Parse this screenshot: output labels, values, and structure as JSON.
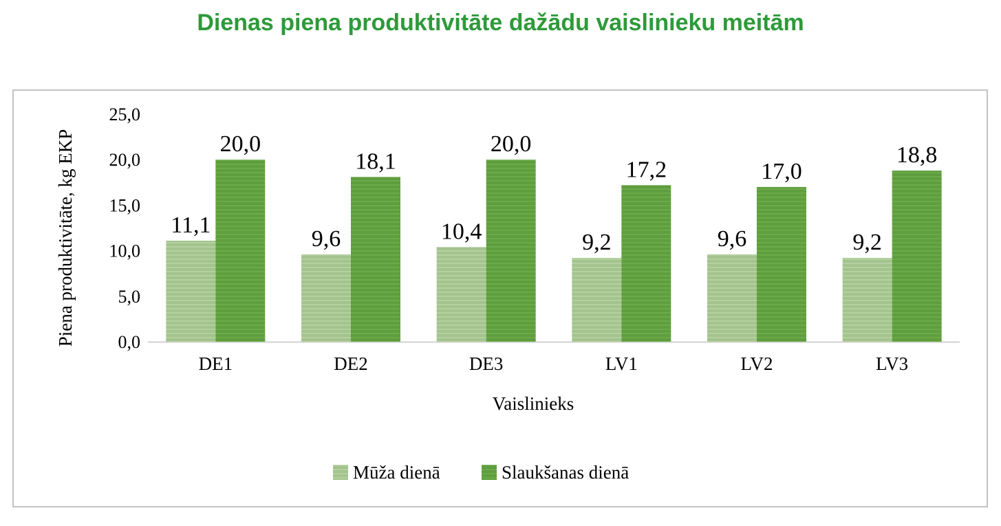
{
  "title": "Dienas piena produktivitāte dažādu vaislinieku meitām",
  "chart_data": {
    "type": "bar",
    "categories": [
      "DE1",
      "DE2",
      "DE3",
      "LV1",
      "LV2",
      "LV3"
    ],
    "series": [
      {
        "name": "Mūža dienā",
        "values": [
          11.1,
          9.6,
          10.4,
          9.2,
          9.6,
          9.2
        ],
        "labels": [
          "11,1",
          "9,6",
          "10,4",
          "9,2",
          "9,6",
          "9,2"
        ],
        "color": "#a3c48d"
      },
      {
        "name": "Slaukšanas dienā",
        "values": [
          20.0,
          18.1,
          20.0,
          17.2,
          17.0,
          18.8
        ],
        "labels": [
          "20,0",
          "18,1",
          "20,0",
          "17,2",
          "17,0",
          "18,8"
        ],
        "color": "#5f9e3e"
      }
    ],
    "xlabel": "Vaislinieks",
    "ylabel": "Piena produktivitāte, kg EKP",
    "ylim": [
      0,
      25
    ],
    "yticks": [
      0,
      5,
      10,
      15,
      20,
      25
    ],
    "ytick_labels": [
      "0,0",
      "5,0",
      "10,0",
      "15,0",
      "20,0",
      "25,0"
    ],
    "grid": false,
    "legend_position": "bottom"
  }
}
